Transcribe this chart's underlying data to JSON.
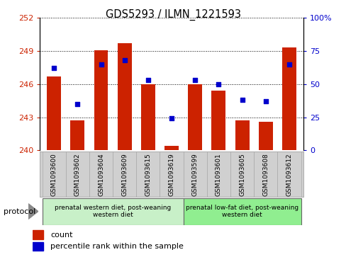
{
  "title": "GDS5293 / ILMN_1221593",
  "samples": [
    "GSM1093600",
    "GSM1093602",
    "GSM1093604",
    "GSM1093609",
    "GSM1093615",
    "GSM1093619",
    "GSM1093599",
    "GSM1093601",
    "GSM1093605",
    "GSM1093608",
    "GSM1093612"
  ],
  "counts": [
    246.7,
    242.7,
    249.1,
    249.7,
    246.0,
    240.4,
    246.0,
    245.4,
    242.7,
    242.6,
    249.3
  ],
  "percentiles": [
    62,
    35,
    65,
    68,
    53,
    24,
    53,
    50,
    38,
    37,
    65
  ],
  "ymin": 240,
  "ymax": 252,
  "yticks": [
    240,
    243,
    246,
    249,
    252
  ],
  "right_yticks": [
    0,
    25,
    50,
    75,
    100
  ],
  "bar_color": "#cc2200",
  "dot_color": "#0000cc",
  "group1_label": "prenatal western diet, post-weaning\nwestern diet",
  "group2_label": "prenatal low-fat diet, post-weaning\nwestern diet",
  "protocol_label": "protocol",
  "legend_count": "count",
  "legend_pct": "percentile rank within the sample",
  "xlab_bg": "#d0d0d0",
  "xlab_border": "#aaaaaa",
  "group1_color": "#c8f0c8",
  "group2_color": "#90ee90"
}
